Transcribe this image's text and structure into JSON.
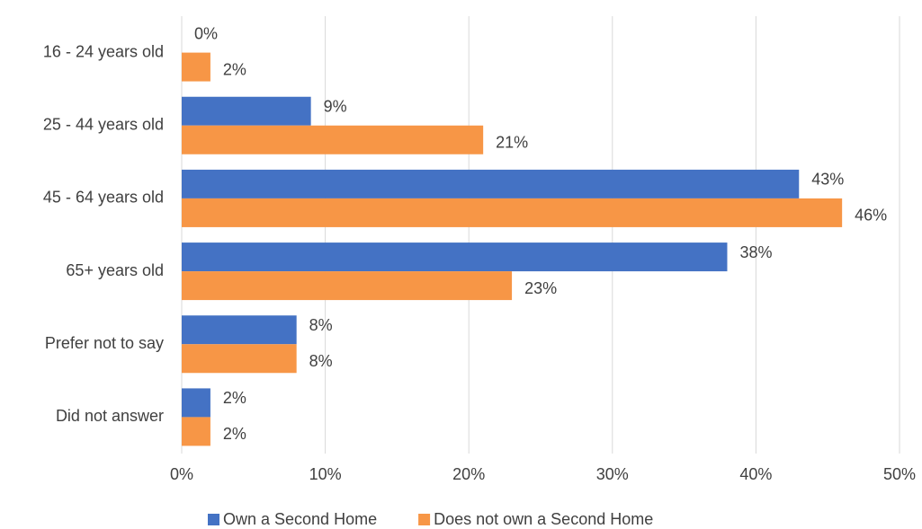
{
  "chart_data": {
    "type": "hbar",
    "categories": [
      "16 - 24 years old",
      "25 - 44 years old",
      "45 - 64 years old",
      "65+ years old",
      "Prefer not to say",
      "Did not answer"
    ],
    "series": [
      {
        "name": "Own a Second Home",
        "color": "#4472c4",
        "values": [
          0,
          9,
          43,
          38,
          8,
          2
        ],
        "value_labels": [
          "0%",
          "9%",
          "43%",
          "38%",
          "8%",
          "2%"
        ]
      },
      {
        "name": "Does not own a Second Home",
        "color": "#f79646",
        "values": [
          2,
          21,
          46,
          23,
          8,
          2
        ],
        "value_labels": [
          "2%",
          "21%",
          "46%",
          "23%",
          "8%",
          "2%"
        ]
      }
    ],
    "xlim": [
      0,
      50
    ],
    "xticks": [
      {
        "value": 0,
        "label": "0%"
      },
      {
        "value": 10,
        "label": "10%"
      },
      {
        "value": 20,
        "label": "20%"
      },
      {
        "value": 30,
        "label": "30%"
      },
      {
        "value": 40,
        "label": "40%"
      },
      {
        "value": 50,
        "label": "50%"
      }
    ],
    "grid": true,
    "legend": "bottom"
  }
}
